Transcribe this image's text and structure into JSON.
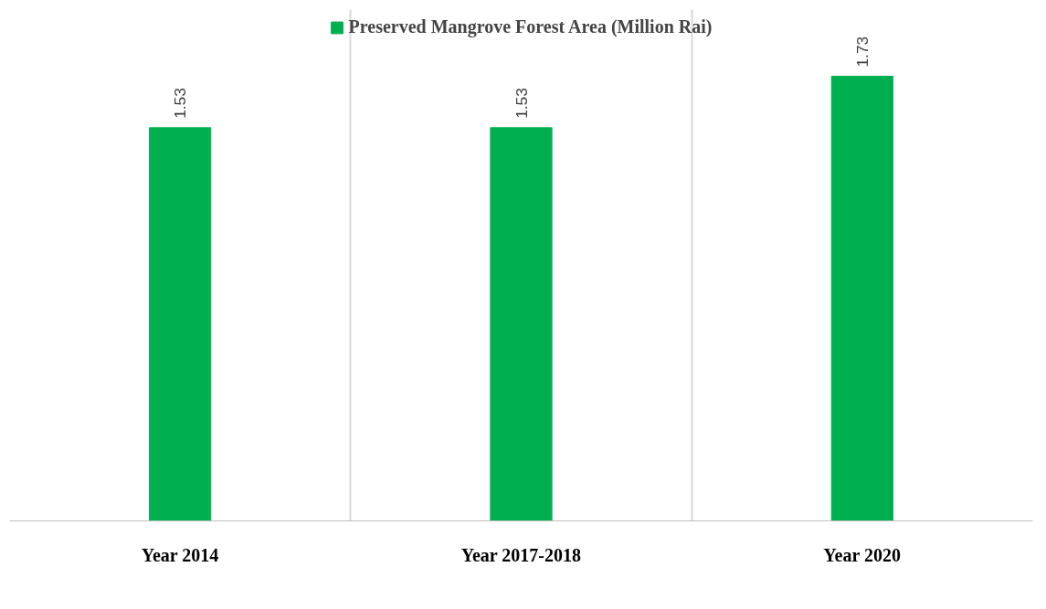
{
  "chart_data": {
    "type": "bar",
    "categories": [
      "Year 2014",
      "Year 2017-2018",
      "Year 2020"
    ],
    "series": [
      {
        "name": "Preserved Mangrove Forest Area (Million Rai)",
        "color": "#00b050",
        "values": [
          1.53,
          1.53,
          1.73
        ]
      }
    ],
    "tick_labels": "x",
    "grid": "x",
    "legend": "top",
    "data_labels": true
  }
}
